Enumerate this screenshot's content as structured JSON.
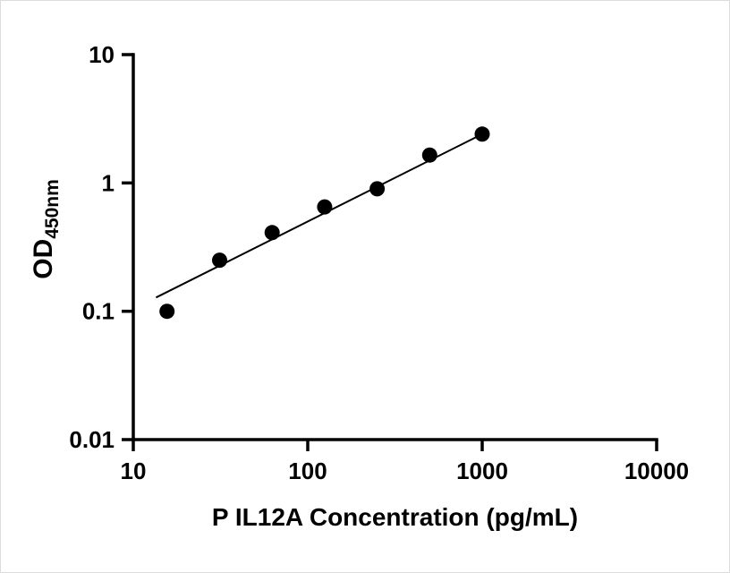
{
  "figure": {
    "background_color": "#ffffff",
    "accent_color": "#000000"
  },
  "chart_data": {
    "type": "scatter",
    "title": "",
    "xlabel": "P IL12A Concentration (pg/mL)",
    "ylabel": "OD",
    "ylabel_subscript": "450nm",
    "x_scale": "log",
    "y_scale": "log",
    "xlim": [
      10,
      10000
    ],
    "ylim": [
      0.01,
      10
    ],
    "x_ticks": [
      10,
      100,
      1000,
      10000
    ],
    "x_tick_labels": [
      "10",
      "100",
      "1000",
      "10000"
    ],
    "y_ticks": [
      0.01,
      0.1,
      1,
      10
    ],
    "y_tick_labels": [
      "0.01",
      "0.1",
      "1",
      "10"
    ],
    "grid": false,
    "legend": null,
    "axis_color": "#000000",
    "marker_color": "#000000",
    "line_color": "#000000",
    "series": [
      {
        "name": "standard-fit-line",
        "type": "line",
        "color": "#000000",
        "x": [
          13.5,
          1000
        ],
        "y": [
          0.128,
          2.4
        ]
      },
      {
        "name": "standard-curve-points",
        "type": "scatter",
        "marker": "filled-circle",
        "color": "#000000",
        "x": [
          15.6,
          31.25,
          62.5,
          125,
          250,
          500,
          1000
        ],
        "y": [
          0.1,
          0.25,
          0.41,
          0.65,
          0.9,
          1.65,
          2.4
        ]
      }
    ]
  }
}
